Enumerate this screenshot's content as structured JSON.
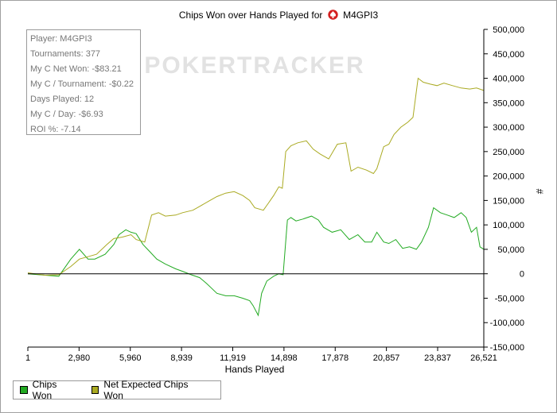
{
  "chart_data": {
    "type": "line",
    "title": "Chips Won over Hands Played for",
    "title_player": "M4GPI3",
    "watermark": "POKERTRACKER",
    "xlabel": "Hands Played",
    "ylabel": "#",
    "xlim": [
      1,
      26521
    ],
    "ylim": [
      -150000,
      500000
    ],
    "x_ticks": [
      1,
      2980,
      5960,
      8939,
      11919,
      14898,
      17878,
      20857,
      23837,
      26521
    ],
    "x_tick_labels": [
      "1",
      "2,980",
      "5,960",
      "8,939",
      "11,919",
      "14,898",
      "17,878",
      "20,857",
      "23,837",
      "26,521"
    ],
    "y_ticks": [
      500000,
      450000,
      400000,
      350000,
      300000,
      250000,
      200000,
      150000,
      100000,
      50000,
      0,
      -50000,
      -100000,
      -150000
    ],
    "y_tick_labels": [
      "500,000",
      "450,000",
      "400,000",
      "350,000",
      "300,000",
      "250,000",
      "200,000",
      "150,000",
      "100,000",
      "50,000",
      "0",
      "-50,000",
      "-100,000",
      "-150,000"
    ],
    "y_axis_side": "right",
    "grid": false,
    "legend_position": "bottom-left",
    "series": [
      {
        "name": "Chips Won",
        "color": "#22aa22",
        "points": [
          [
            1,
            0
          ],
          [
            1000,
            -3000
          ],
          [
            1800,
            -5000
          ],
          [
            2500,
            30000
          ],
          [
            3000,
            50000
          ],
          [
            3500,
            30000
          ],
          [
            3900,
            30000
          ],
          [
            4500,
            40000
          ],
          [
            5000,
            60000
          ],
          [
            5300,
            80000
          ],
          [
            5700,
            90000
          ],
          [
            6000,
            85000
          ],
          [
            6300,
            82000
          ],
          [
            6700,
            60000
          ],
          [
            7100,
            45000
          ],
          [
            7500,
            30000
          ],
          [
            8000,
            20000
          ],
          [
            8600,
            10000
          ],
          [
            9000,
            5000
          ],
          [
            9500,
            -2000
          ],
          [
            10000,
            -8000
          ],
          [
            10400,
            -20000
          ],
          [
            10700,
            -30000
          ],
          [
            11000,
            -40000
          ],
          [
            11500,
            -45000
          ],
          [
            12000,
            -45000
          ],
          [
            12500,
            -50000
          ],
          [
            12900,
            -55000
          ],
          [
            13100,
            -65000
          ],
          [
            13400,
            -85000
          ],
          [
            13600,
            -40000
          ],
          [
            13900,
            -15000
          ],
          [
            14300,
            -5000
          ],
          [
            14600,
            0
          ],
          [
            14850,
            -2000
          ],
          [
            15100,
            110000
          ],
          [
            15300,
            115000
          ],
          [
            15600,
            108000
          ],
          [
            16000,
            112000
          ],
          [
            16500,
            118000
          ],
          [
            16900,
            110000
          ],
          [
            17200,
            95000
          ],
          [
            17700,
            85000
          ],
          [
            18200,
            90000
          ],
          [
            18700,
            70000
          ],
          [
            19200,
            80000
          ],
          [
            19600,
            65000
          ],
          [
            20000,
            65000
          ],
          [
            20300,
            85000
          ],
          [
            20700,
            65000
          ],
          [
            21000,
            62000
          ],
          [
            21400,
            70000
          ],
          [
            21800,
            52000
          ],
          [
            22200,
            55000
          ],
          [
            22600,
            50000
          ],
          [
            22900,
            65000
          ],
          [
            23300,
            95000
          ],
          [
            23600,
            135000
          ],
          [
            24000,
            125000
          ],
          [
            24400,
            120000
          ],
          [
            24800,
            115000
          ],
          [
            25200,
            125000
          ],
          [
            25500,
            115000
          ],
          [
            25800,
            85000
          ],
          [
            26100,
            95000
          ],
          [
            26300,
            55000
          ],
          [
            26521,
            50000
          ]
        ]
      },
      {
        "name": "Net Expected Chips Won",
        "color": "#aaaa22",
        "points": [
          [
            1,
            2000
          ],
          [
            1000,
            -3000
          ],
          [
            1800,
            -2000
          ],
          [
            2500,
            15000
          ],
          [
            3000,
            30000
          ],
          [
            3500,
            35000
          ],
          [
            4000,
            40000
          ],
          [
            4600,
            60000
          ],
          [
            5000,
            72000
          ],
          [
            5500,
            75000
          ],
          [
            6000,
            80000
          ],
          [
            6300,
            70000
          ],
          [
            6800,
            65000
          ],
          [
            7200,
            120000
          ],
          [
            7600,
            125000
          ],
          [
            8000,
            118000
          ],
          [
            8600,
            120000
          ],
          [
            9000,
            125000
          ],
          [
            9600,
            130000
          ],
          [
            10000,
            138000
          ],
          [
            10500,
            148000
          ],
          [
            11000,
            158000
          ],
          [
            11500,
            165000
          ],
          [
            12000,
            168000
          ],
          [
            12500,
            160000
          ],
          [
            12900,
            150000
          ],
          [
            13200,
            135000
          ],
          [
            13700,
            130000
          ],
          [
            14000,
            145000
          ],
          [
            14300,
            160000
          ],
          [
            14600,
            178000
          ],
          [
            14800,
            175000
          ],
          [
            15000,
            250000
          ],
          [
            15300,
            262000
          ],
          [
            15700,
            268000
          ],
          [
            16200,
            272000
          ],
          [
            16600,
            255000
          ],
          [
            17000,
            245000
          ],
          [
            17500,
            235000
          ],
          [
            18000,
            265000
          ],
          [
            18500,
            268000
          ],
          [
            18800,
            210000
          ],
          [
            19200,
            218000
          ],
          [
            19700,
            212000
          ],
          [
            20100,
            205000
          ],
          [
            20300,
            215000
          ],
          [
            20700,
            260000
          ],
          [
            21000,
            265000
          ],
          [
            21300,
            285000
          ],
          [
            21700,
            300000
          ],
          [
            22100,
            310000
          ],
          [
            22400,
            320000
          ],
          [
            22700,
            400000
          ],
          [
            23000,
            392000
          ],
          [
            23400,
            388000
          ],
          [
            23800,
            385000
          ],
          [
            24200,
            390000
          ],
          [
            24700,
            385000
          ],
          [
            25200,
            380000
          ],
          [
            25700,
            378000
          ],
          [
            26100,
            380000
          ],
          [
            26521,
            375000
          ]
        ]
      }
    ]
  },
  "stats": {
    "player": "Player: M4GPI3",
    "tournaments": "Tournaments: 377",
    "net_won": "My C Net Won: -$83.21",
    "per_tournament": "My C / Tournament: -$0.22",
    "days_played": "Days Played: 12",
    "per_day": "My C / Day: -$6.93",
    "roi": "ROI %: -7.14"
  },
  "legend": {
    "chips_won": "Chips Won",
    "net_expected": "Net Expected Chips Won"
  }
}
